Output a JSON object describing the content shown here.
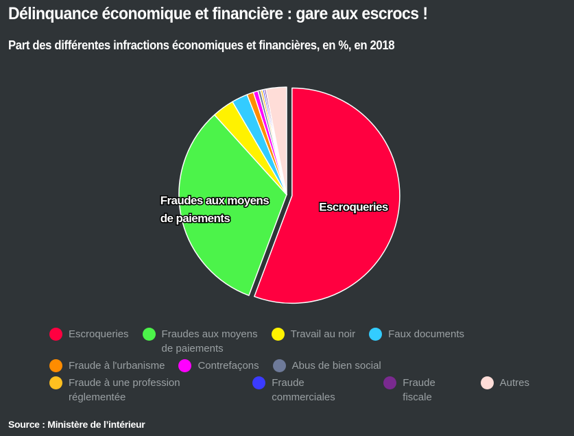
{
  "header": {
    "title": "Délinquance économique et financière : gare aux escrocs !",
    "subtitle": "Part des différentes infractions économiques et financières, en %, en 2018"
  },
  "footer": {
    "source": "Source : Ministère de l’intérieur"
  },
  "chart_data": {
    "type": "pie",
    "title": "Délinquance économique et financière : gare aux escrocs !",
    "subtitle": "Part des différentes infractions économiques et financières, en %, en 2018",
    "legend_position": "bottom",
    "exploded_slice": "Escroqueries",
    "slices": [
      {
        "label": "Escroqueries",
        "value": 55.7,
        "color": "#ff0040",
        "slice_label": "Escroqueries"
      },
      {
        "label": "Fraudes aux moyens de paiements",
        "legend_label": "Fraudes aux moyens\nde paiements",
        "value": 32.6,
        "color": "#4cf34a",
        "slice_label_line1": "Fraudes aux moyens",
        "slice_label_line2": "de paiements"
      },
      {
        "label": "Travail au noir",
        "value": 3.3,
        "color": "#fff200",
        "slice_label": ""
      },
      {
        "label": "Faux documents",
        "value": 2.4,
        "color": "#33ccff",
        "slice_label": ""
      },
      {
        "label": "Fraude à l'urbanisme",
        "value": 1.0,
        "color": "#ff8c00",
        "slice_label": ""
      },
      {
        "label": "Contrefaçons",
        "value": 0.7,
        "color": "#ff00ff",
        "slice_label": ""
      },
      {
        "label": "Abus de bien social",
        "value": 0.4,
        "color": "#6e7a99",
        "slice_label": ""
      },
      {
        "label": "Fraude à une profession réglementée",
        "value": 0.3,
        "color": "#ffc020",
        "slice_label": ""
      },
      {
        "label": "Fraude commerciales",
        "value": 0.25,
        "color": "#3b3bff",
        "slice_label": ""
      },
      {
        "label": "Fraude fiscale",
        "value": 0.25,
        "color": "#7a2a8f",
        "slice_label": ""
      },
      {
        "label": "Autres",
        "value": 3.1,
        "color": "#ffddd8",
        "slice_label": ""
      }
    ]
  }
}
